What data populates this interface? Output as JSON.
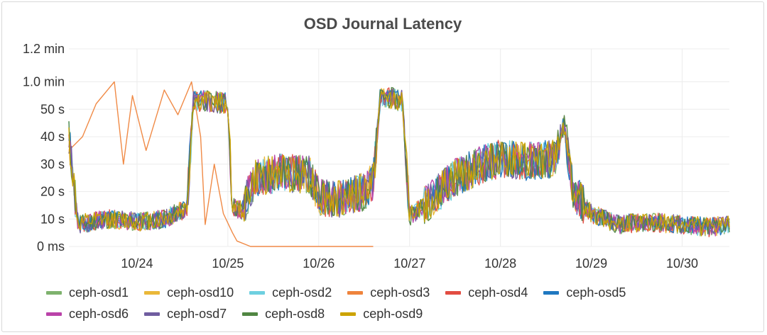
{
  "chart_data": {
    "type": "line",
    "title": "OSD Journal Latency",
    "ylabel": "",
    "xlabel": "",
    "ylim": [
      0,
      72
    ],
    "xlim": [
      23.25,
      30.52
    ],
    "y_ticks": [
      {
        "value": 0,
        "label": "0 ms"
      },
      {
        "value": 10,
        "label": "10 s"
      },
      {
        "value": 20,
        "label": "20 s"
      },
      {
        "value": 30,
        "label": "30 s"
      },
      {
        "value": 40,
        "label": "40 s"
      },
      {
        "value": 50,
        "label": "50 s"
      },
      {
        "value": 60,
        "label": "1.0 min"
      },
      {
        "value": 72,
        "label": "1.2 min"
      }
    ],
    "x_ticks": [
      {
        "value": 24,
        "label": "10/24"
      },
      {
        "value": 25,
        "label": "10/25"
      },
      {
        "value": 26,
        "label": "10/26"
      },
      {
        "value": 27,
        "label": "10/27"
      },
      {
        "value": 28,
        "label": "10/28"
      },
      {
        "value": 29,
        "label": "10/29"
      },
      {
        "value": 30,
        "label": "10/30"
      }
    ],
    "grid": true,
    "legend_position": "bottom",
    "series_base": {
      "x": [
        23.25,
        23.35,
        23.5,
        23.7,
        24.0,
        24.3,
        24.55,
        24.62,
        24.8,
        25.0,
        25.05,
        25.15,
        25.3,
        25.6,
        25.9,
        26.0,
        26.2,
        26.5,
        26.6,
        26.68,
        26.8,
        26.92,
        27.0,
        27.2,
        27.5,
        27.8,
        28.0,
        28.3,
        28.6,
        28.7,
        28.8,
        29.0,
        29.3,
        29.6,
        30.0,
        30.3,
        30.5
      ],
      "y": [
        40,
        8,
        9,
        10,
        9,
        10,
        14,
        53,
        53,
        52,
        15,
        13,
        25,
        27,
        26,
        18,
        17,
        20,
        24,
        55,
        54,
        53,
        11,
        16,
        25,
        30,
        32,
        31,
        32,
        45,
        20,
        12,
        8,
        9,
        8,
        7,
        8
      ]
    },
    "series": [
      {
        "name": "ceph-osd1",
        "color": "#7eb26d"
      },
      {
        "name": "ceph-osd10",
        "color": "#eab839"
      },
      {
        "name": "ceph-osd2",
        "color": "#6ed0e0"
      },
      {
        "name": "ceph-osd3",
        "color": "#ef843c",
        "x": [
          23.25,
          23.4,
          23.55,
          23.75,
          23.85,
          23.95,
          24.1,
          24.3,
          24.45,
          24.6,
          24.7,
          24.75,
          24.85,
          24.95,
          25.05,
          25.1,
          25.25,
          25.5,
          26.0,
          26.6
        ],
        "y": [
          35,
          40,
          52,
          60,
          30,
          55,
          35,
          57,
          48,
          60,
          40,
          8,
          30,
          12,
          5,
          2,
          0,
          0,
          0,
          0
        ]
      },
      {
        "name": "ceph-osd4",
        "color": "#e24d42"
      },
      {
        "name": "ceph-osd5",
        "color": "#1f78c1"
      },
      {
        "name": "ceph-osd6",
        "color": "#ba43a9"
      },
      {
        "name": "ceph-osd7",
        "color": "#705da0"
      },
      {
        "name": "ceph-osd8",
        "color": "#508642"
      },
      {
        "name": "ceph-osd9",
        "color": "#cca300"
      }
    ]
  }
}
